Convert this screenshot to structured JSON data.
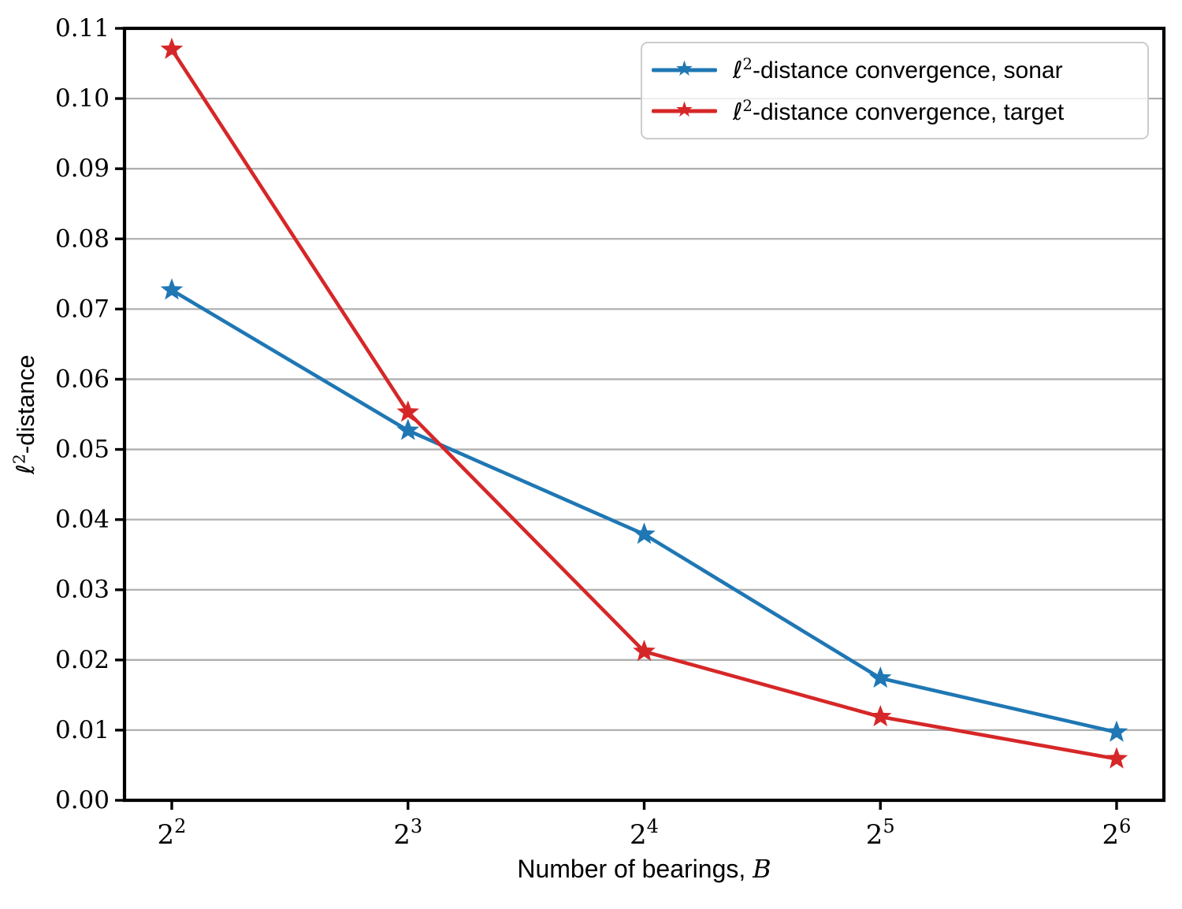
{
  "style": {
    "background": "#ffffff",
    "axis_color": "#000000",
    "grid_color": "#b0b0b0",
    "tick_label_color": "#000000",
    "legend_border_color": "#cccccc",
    "legend_background": "rgba(255,255,255,0.8)",
    "sonar_color": "#1f77b4",
    "target_color": "#d62728",
    "star_icon": "★"
  },
  "chart_data": {
    "type": "line",
    "title": "",
    "xlabel": "Number of bearings, B",
    "ylabel": "ℓ²-distance",
    "x_axis": {
      "label_text_prefix": "Number of bearings, ",
      "label_math": "B",
      "scale": "log2",
      "ticks": [
        {
          "base": "2",
          "sup": "2"
        },
        {
          "base": "2",
          "sup": "3"
        },
        {
          "base": "2",
          "sup": "4"
        },
        {
          "base": "2",
          "sup": "5"
        },
        {
          "base": "2",
          "sup": "6"
        }
      ]
    },
    "y_axis": {
      "label_math_base": "ℓ",
      "label_math_sup": "2",
      "label_text": "-distance",
      "min": 0.0,
      "max": 0.11,
      "tick_step": 0.01,
      "tick_labels": [
        "0.00",
        "0.01",
        "0.02",
        "0.03",
        "0.04",
        "0.05",
        "0.06",
        "0.07",
        "0.08",
        "0.09",
        "0.10",
        "0.11"
      ]
    },
    "categories": [
      4,
      8,
      16,
      32,
      64
    ],
    "series": [
      {
        "name": "ℓ²-distance convergence, sonar",
        "label_math_base": "ℓ",
        "label_math_sup": "2",
        "label_text": "-distance convergence, sonar",
        "color": "#1f77b4",
        "marker": "star",
        "values": [
          0.0727,
          0.0527,
          0.0379,
          0.0174,
          0.0097
        ]
      },
      {
        "name": "ℓ²-distance convergence, target",
        "label_math_base": "ℓ",
        "label_math_sup": "2",
        "label_text": "-distance convergence, target",
        "color": "#d62728",
        "marker": "star",
        "values": [
          0.107,
          0.0553,
          0.0212,
          0.0119,
          0.0059
        ]
      }
    ],
    "grid": {
      "horizontal": true,
      "vertical": false
    },
    "legend_position": "upper right"
  }
}
